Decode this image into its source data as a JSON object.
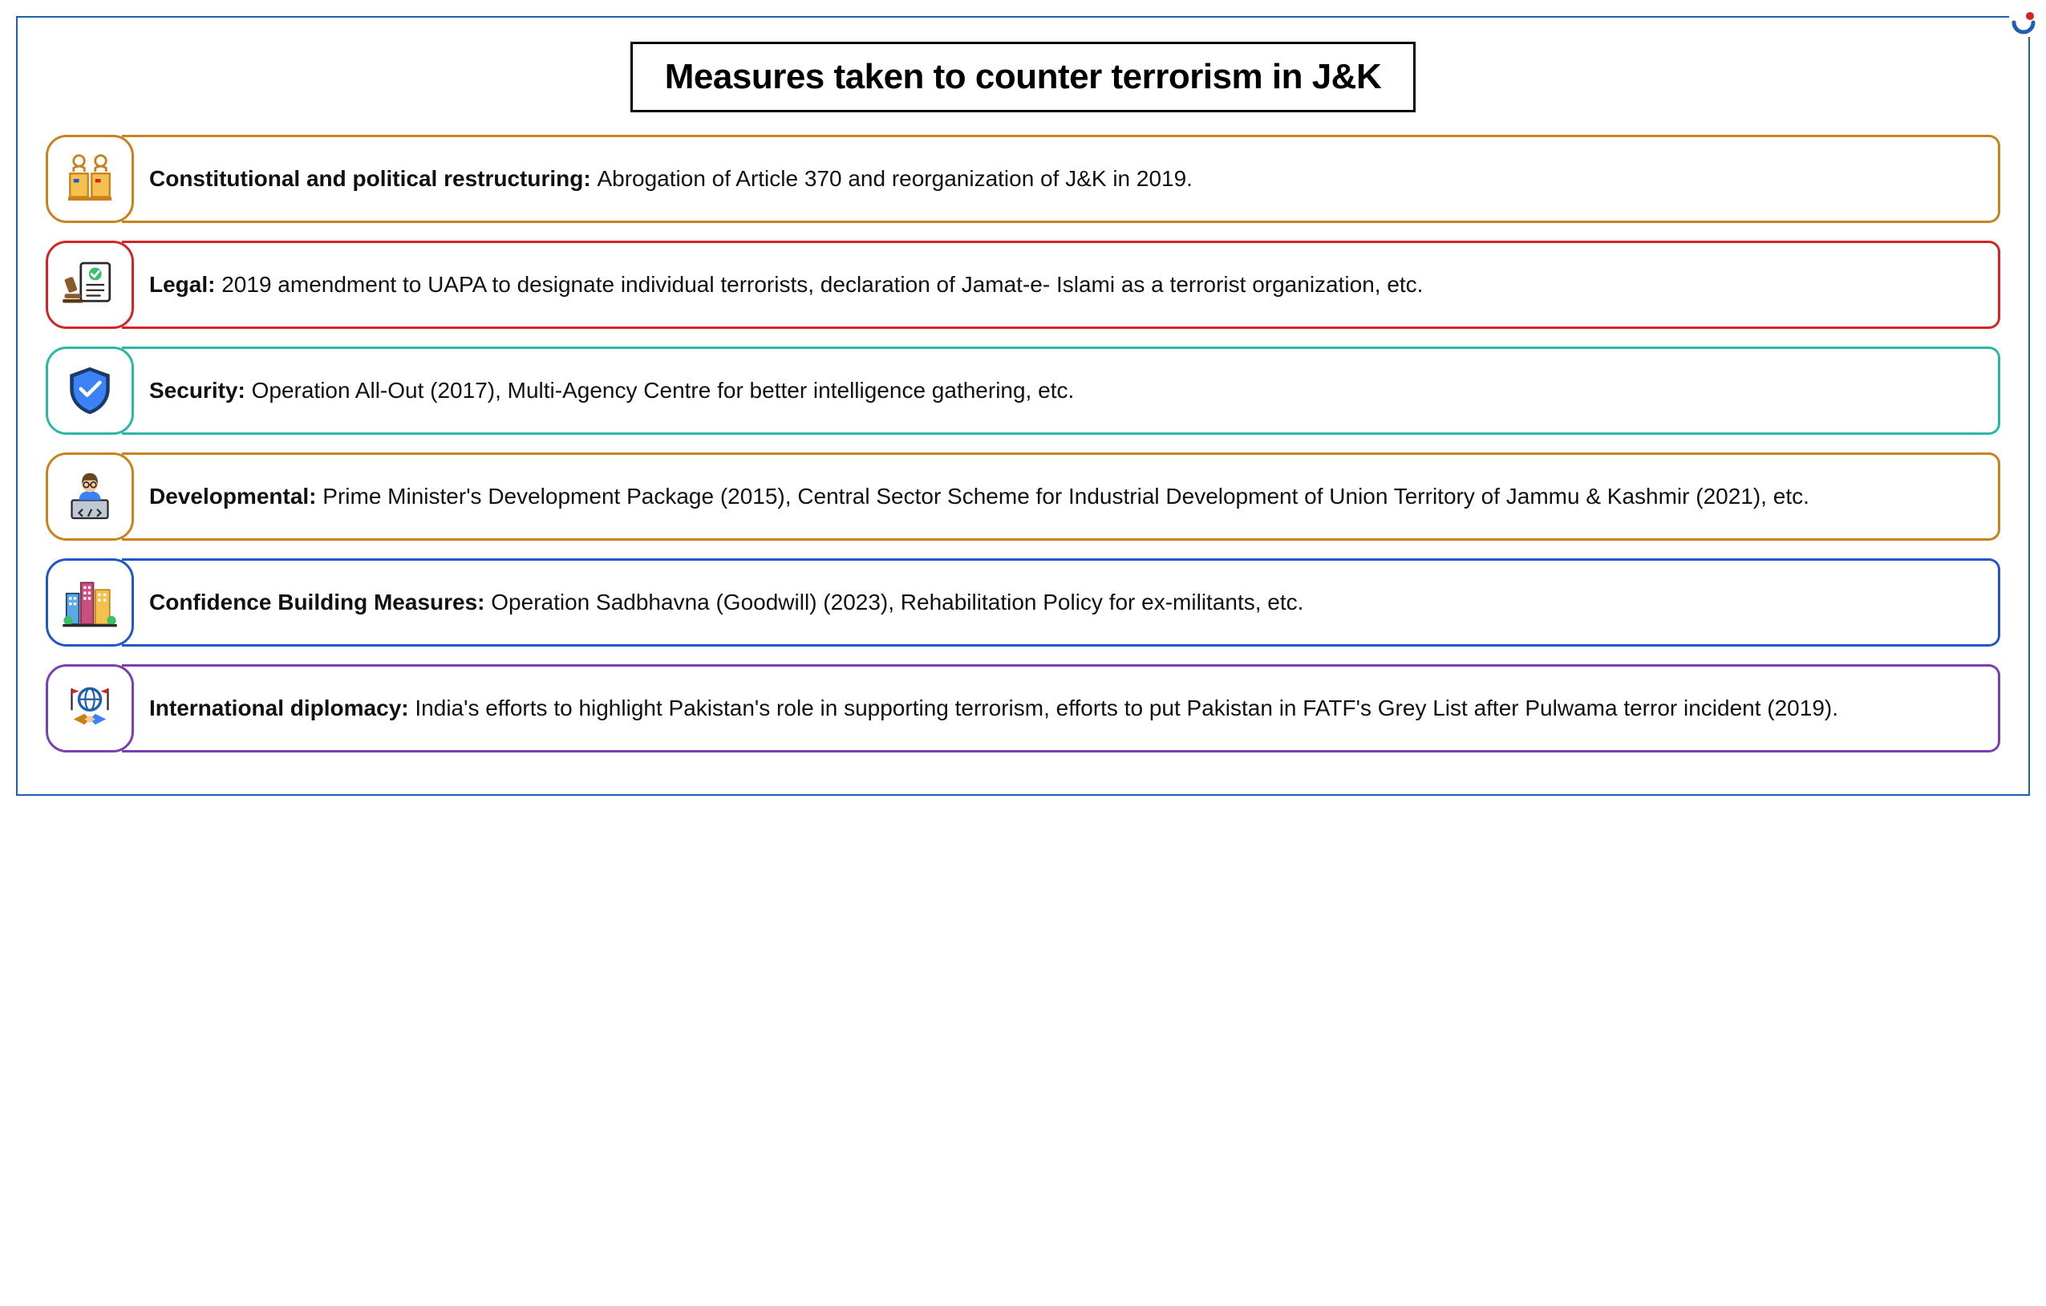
{
  "title": "Measures taken to counter terrorism in J&K",
  "outer_border_color": "#1e5fb0",
  "title_border_color": "#000000",
  "rows": [
    {
      "icon": "podium-icon",
      "border_color": "#c8831e",
      "label": "Constitutional and political restructuring: ",
      "body": "Abrogation of Article 370 and reorganization of J&K in 2019."
    },
    {
      "icon": "gavel-doc-icon",
      "border_color": "#d62324",
      "label": "Legal: ",
      "body": "2019 amendment to UAPA to designate individual terrorists, declaration of Jamat-e- Islami as a terrorist organization, etc."
    },
    {
      "icon": "shield-icon",
      "border_color": "#2bb7a6",
      "label": "Security: ",
      "body": "Operation All-Out (2017), Multi-Agency Centre for better intelligence gathering, etc."
    },
    {
      "icon": "developer-icon",
      "border_color": "#c8831e",
      "label": "Developmental: ",
      "body": "Prime Minister's Development Package (2015), Central Sector Scheme for Industrial Development of Union Territory of Jammu & Kashmir (2021), etc."
    },
    {
      "icon": "buildings-icon",
      "border_color": "#2257c8",
      "label": "Confidence Building Measures: ",
      "body": "Operation Sadbhavna (Goodwill) (2023), Rehabilitation Policy for ex-militants, etc."
    },
    {
      "icon": "diplomacy-icon",
      "border_color": "#7a3fb0",
      "label": "International diplomacy: ",
      "body": "India's efforts to highlight Pakistan's role in supporting terrorism, efforts to put Pakistan in FATF's Grey List after Pulwama terror incident (2019)."
    }
  ],
  "logo_colors": {
    "red": "#d62324",
    "blue": "#1e5fb0"
  }
}
